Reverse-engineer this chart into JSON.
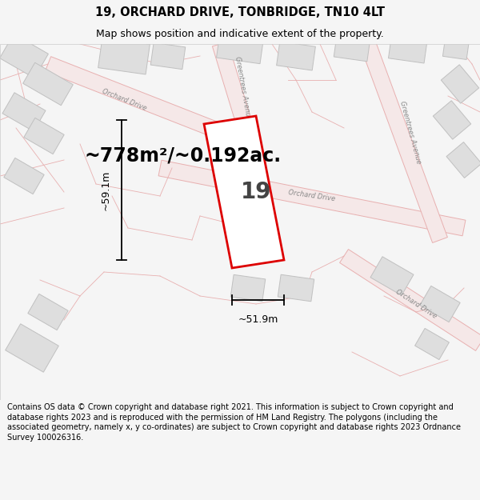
{
  "title_line1": "19, ORCHARD DRIVE, TONBRIDGE, TN10 4LT",
  "title_line2": "Map shows position and indicative extent of the property.",
  "area_text": "~778m²/~0.192ac.",
  "label_19": "19",
  "dim_width": "~51.9m",
  "dim_height": "~59.1m",
  "footer": "Contains OS data © Crown copyright and database right 2021. This information is subject to Crown copyright and database rights 2023 and is reproduced with the permission of HM Land Registry. The polygons (including the associated geometry, namely x, y co-ordinates) are subject to Crown copyright and database rights 2023 Ordnance Survey 100026316.",
  "bg_color": "#f5f5f5",
  "map_bg": "#f8f8f8",
  "road_outline": "#e8b0b0",
  "road_fill": "#f5e8e8",
  "building_fill": "#dedede",
  "building_edge": "#c0c0c0",
  "plot_color": "#dd0000",
  "title_fontsize": 10.5,
  "subtitle_fontsize": 9,
  "footer_fontsize": 7.0,
  "area_fontsize": 17
}
